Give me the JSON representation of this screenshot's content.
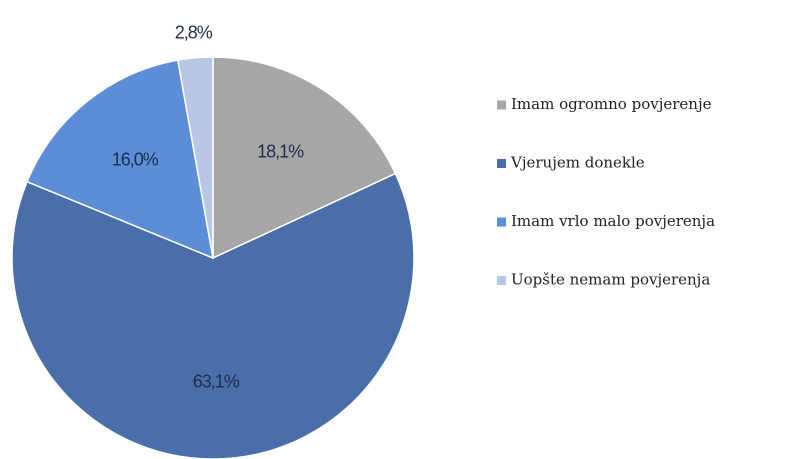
{
  "chart_data": {
    "type": "pie",
    "categories": [
      "Imam ogromno povjerenje",
      "Vjerujem donekle",
      "Imam vrlo malo povjerenja",
      "Uopšte nemam povjerenja"
    ],
    "values": [
      18.1,
      63.1,
      16.0,
      2.8
    ],
    "value_labels": [
      "18,1%",
      "63,1%",
      "16,0%",
      "2,8%"
    ],
    "colors": [
      "#a6a6a6",
      "#4a6ea9",
      "#5b8ed6",
      "#b8c7e6"
    ],
    "legend": "right"
  }
}
